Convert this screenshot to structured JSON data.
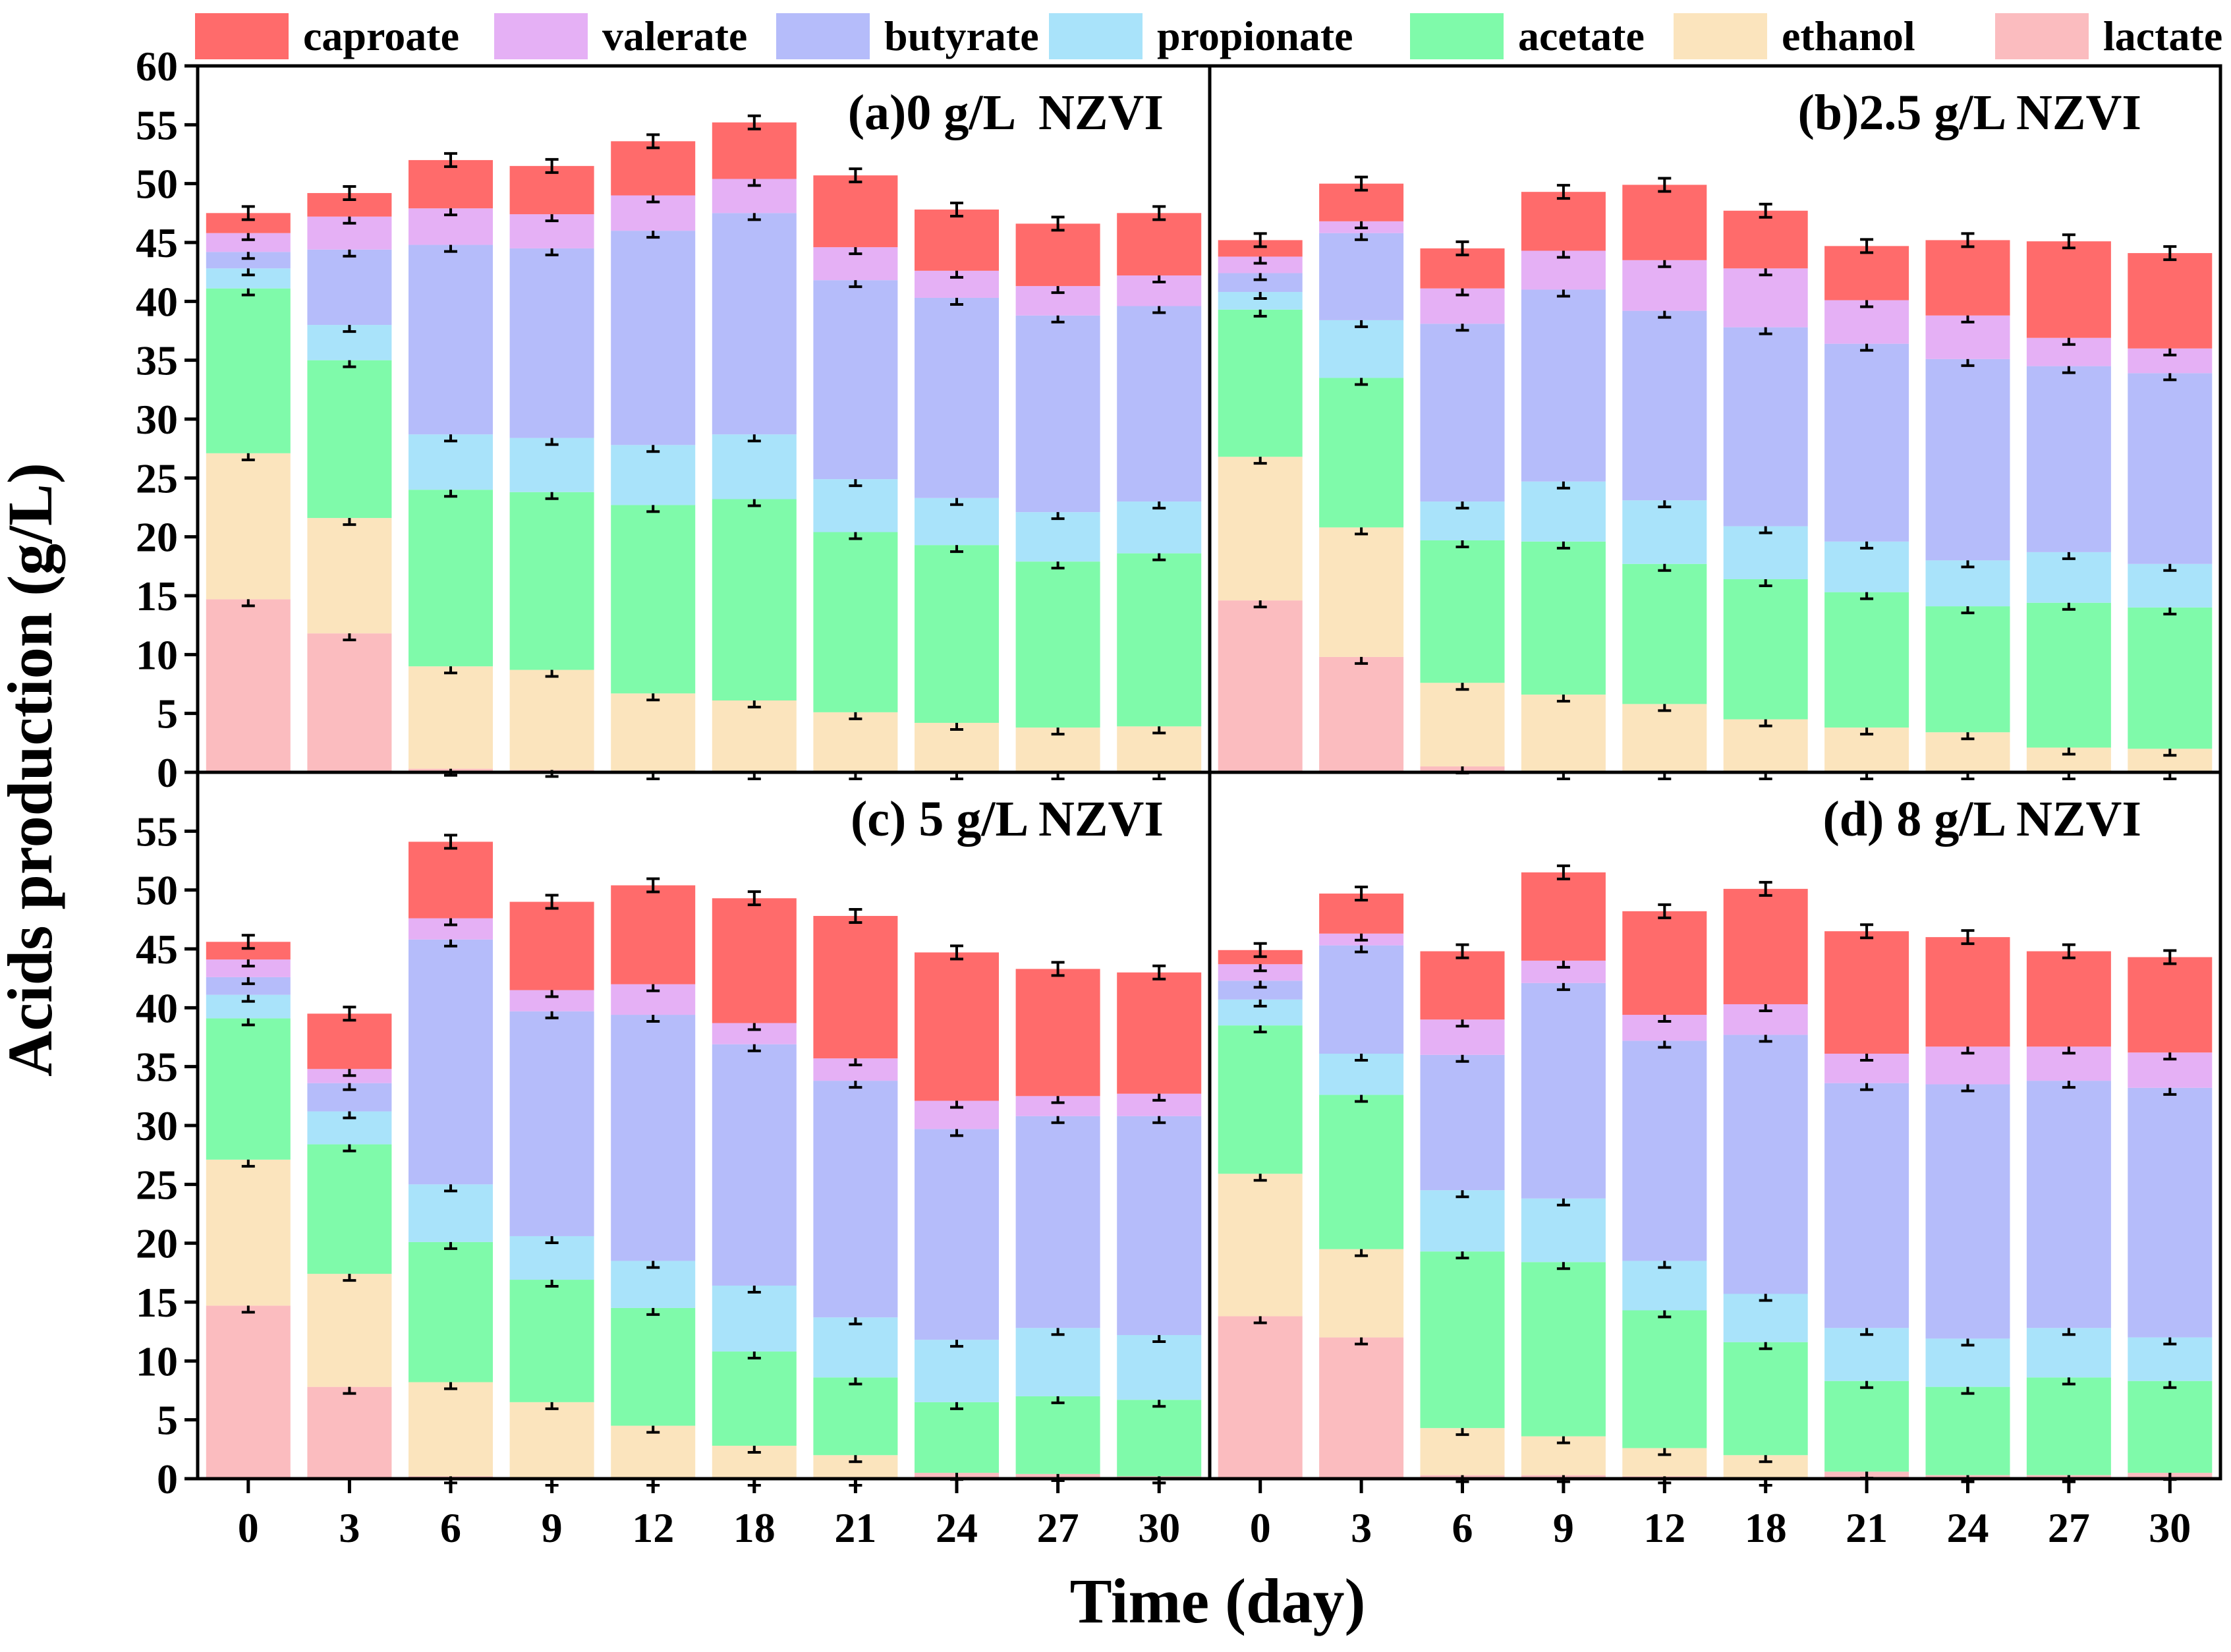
{
  "chart_data": {
    "type": "bar",
    "stacked": true,
    "ylabel": "Acids production (g/L)",
    "xlabel": "Time (day)",
    "ylim": [
      0,
      60
    ],
    "categories": [
      "0",
      "3",
      "6",
      "9",
      "12",
      "18",
      "21",
      "24",
      "27",
      "30"
    ],
    "series_names": [
      "caproate",
      "valerate",
      "butyrate",
      "propionate",
      "acetate",
      "ethanol",
      "lactate"
    ],
    "legend": [
      {
        "name": "caproate",
        "color": "#FF6B6B"
      },
      {
        "name": "valerate",
        "color": "#E5B0F5"
      },
      {
        "name": "butyrate",
        "color": "#B5BCFA"
      },
      {
        "name": "propionate",
        "color": "#A9E3FA"
      },
      {
        "name": "acetate",
        "color": "#7FFAAA"
      },
      {
        "name": "ethanol",
        "color": "#FBE4BD"
      },
      {
        "name": "lactate",
        "color": "#FBBCBF"
      }
    ],
    "panels": [
      {
        "title": "(a)0 g/L  NZVI",
        "title_pos": "top-left",
        "yticks": [
          "0",
          "5",
          "10",
          "15",
          "20",
          "25",
          "30",
          "35",
          "40",
          "45",
          "50",
          "55",
          "60"
        ],
        "series": [
          {
            "name": "lactate",
            "values": [
              14.7,
              11.8,
              0.3,
              0.2,
              0,
              0,
              0,
              0,
              0,
              0
            ]
          },
          {
            "name": "ethanol",
            "values": [
              12.4,
              9.8,
              8.7,
              8.5,
              6.7,
              6.1,
              5.1,
              4.2,
              3.8,
              3.9
            ]
          },
          {
            "name": "acetate",
            "values": [
              14.0,
              13.4,
              15.0,
              15.1,
              16.0,
              17.1,
              15.3,
              15.1,
              14.1,
              14.7
            ]
          },
          {
            "name": "propionate",
            "values": [
              1.7,
              3.0,
              4.7,
              4.6,
              5.1,
              5.5,
              4.5,
              4.0,
              4.2,
              4.4
            ]
          },
          {
            "name": "butyrate",
            "values": [
              1.4,
              6.4,
              16.1,
              16.1,
              18.2,
              18.8,
              16.9,
              17.0,
              16.7,
              16.6
            ]
          },
          {
            "name": "valerate",
            "values": [
              1.6,
              2.8,
              3.1,
              2.9,
              3.0,
              2.9,
              2.8,
              2.3,
              2.5,
              2.6
            ]
          },
          {
            "name": "caproate",
            "values": [
              1.7,
              2.0,
              4.1,
              4.1,
              4.6,
              4.8,
              6.1,
              5.2,
              5.3,
              5.3
            ]
          }
        ],
        "totals": [
          47.5,
          49.2,
          52.0,
          51.5,
          53.6,
          55.2,
          50.7,
          47.8,
          46.6,
          47.5
        ]
      },
      {
        "title": "(b)2.5 g/L NZVI",
        "title_pos": "top-right",
        "yticks": [],
        "series": [
          {
            "name": "lactate",
            "values": [
              14.6,
              9.8,
              0.5,
              0,
              0,
              0,
              0,
              0,
              0,
              0
            ]
          },
          {
            "name": "ethanol",
            "values": [
              12.2,
              11.0,
              7.1,
              6.6,
              5.8,
              4.5,
              3.8,
              3.4,
              2.1,
              2.0
            ]
          },
          {
            "name": "acetate",
            "values": [
              12.5,
              12.7,
              12.1,
              13.0,
              11.9,
              11.9,
              11.5,
              10.7,
              12.3,
              12.0
            ]
          },
          {
            "name": "propionate",
            "values": [
              1.5,
              4.9,
              3.3,
              5.1,
              5.4,
              4.5,
              4.3,
              3.9,
              4.3,
              3.7
            ]
          },
          {
            "name": "butyrate",
            "values": [
              1.6,
              7.4,
              15.1,
              16.3,
              16.1,
              16.9,
              16.8,
              17.1,
              15.8,
              16.2
            ]
          },
          {
            "name": "valerate",
            "values": [
              1.4,
              1.0,
              3.0,
              3.3,
              4.3,
              5.0,
              3.7,
              3.7,
              2.4,
              2.1
            ]
          },
          {
            "name": "caproate",
            "values": [
              1.4,
              3.2,
              3.4,
              5.0,
              6.4,
              4.9,
              4.6,
              6.4,
              8.2,
              8.1
            ]
          }
        ],
        "totals": [
          45.2,
          49.9,
          44.5,
          49.3,
          49.9,
          47.7,
          44.7,
          45.2,
          45.0,
          44.1
        ]
      },
      {
        "title": "(c) 5 g/L NZVI",
        "title_pos": "top-left",
        "yticks": [
          "0",
          "5",
          "10",
          "15",
          "20",
          "25",
          "30",
          "35",
          "40",
          "45",
          "50",
          "55"
        ],
        "series": [
          {
            "name": "lactate",
            "values": [
              14.7,
              7.8,
              0.2,
              0,
              0,
              0,
              0,
              0.5,
              0.4,
              0.2
            ]
          },
          {
            "name": "ethanol",
            "values": [
              12.4,
              9.6,
              8.0,
              6.5,
              4.5,
              2.8,
              2.0,
              0,
              0,
              0
            ]
          },
          {
            "name": "acetate",
            "values": [
              12.0,
              11.0,
              11.9,
              10.4,
              10.0,
              8.0,
              6.6,
              6.0,
              6.6,
              6.5
            ]
          },
          {
            "name": "propionate",
            "values": [
              2.0,
              2.8,
              4.9,
              3.7,
              4.0,
              5.6,
              5.1,
              5.3,
              5.8,
              5.5
            ]
          },
          {
            "name": "butyrate",
            "values": [
              1.5,
              2.4,
              20.8,
              19.1,
              20.9,
              20.5,
              20.1,
              17.9,
              18.0,
              18.6
            ]
          },
          {
            "name": "valerate",
            "values": [
              1.5,
              1.2,
              1.8,
              1.8,
              2.6,
              1.8,
              1.9,
              2.4,
              1.7,
              1.9
            ]
          },
          {
            "name": "caproate",
            "values": [
              1.5,
              4.7,
              6.5,
              7.5,
              8.4,
              10.6,
              12.1,
              12.6,
              10.8,
              10.3
            ]
          }
        ],
        "totals": [
          45.4,
          39.5,
          54.1,
          49.0,
          50.4,
          49.3,
          47.8,
          44.7,
          43.3,
          43.0
        ]
      },
      {
        "title": "(d) 8 g/L NZVI",
        "title_pos": "top-right",
        "yticks": [],
        "series": [
          {
            "name": "lactate",
            "values": [
              13.8,
              12.0,
              0.3,
              0.3,
              0.2,
              0,
              0.6,
              0.3,
              0.3,
              0.5
            ]
          },
          {
            "name": "ethanol",
            "values": [
              12.1,
              7.5,
              4.0,
              3.3,
              2.4,
              2.0,
              0,
              0,
              0,
              0
            ]
          },
          {
            "name": "acetate",
            "values": [
              12.6,
              13.1,
              15.0,
              14.8,
              11.7,
              9.6,
              7.7,
              7.5,
              8.3,
              7.8
            ]
          },
          {
            "name": "propionate",
            "values": [
              2.2,
              3.5,
              5.2,
              5.4,
              4.2,
              4.1,
              4.5,
              4.1,
              4.2,
              3.7
            ]
          },
          {
            "name": "butyrate",
            "values": [
              1.6,
              9.2,
              11.5,
              18.3,
              18.7,
              22.0,
              20.8,
              21.6,
              21.0,
              21.2
            ]
          },
          {
            "name": "valerate",
            "values": [
              1.4,
              1.0,
              3.0,
              1.9,
              2.2,
              2.6,
              2.5,
              3.2,
              2.9,
              3.0
            ]
          },
          {
            "name": "caproate",
            "values": [
              1.2,
              3.4,
              5.8,
              7.5,
              8.8,
              9.8,
              10.4,
              9.3,
              8.1,
              8.1
            ]
          }
        ],
        "totals": [
          44.6,
          49.7,
          44.8,
          51.5,
          48.0,
          50.1,
          46.5,
          46.0,
          44.8,
          44.3
        ]
      }
    ]
  }
}
